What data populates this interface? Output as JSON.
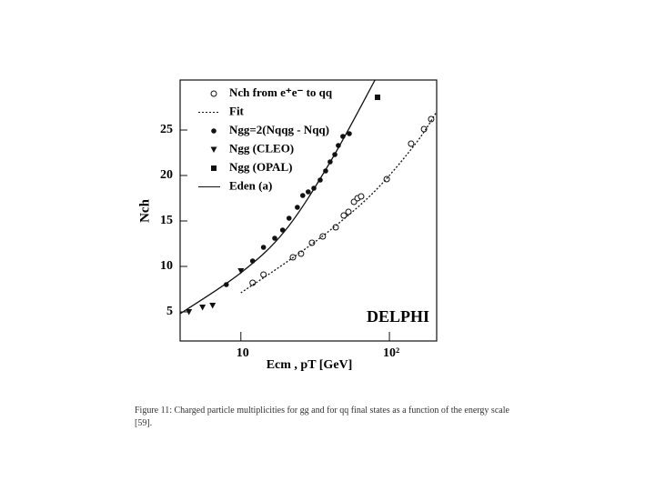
{
  "chart_data": {
    "type": "line",
    "y_label": "Nch",
    "x_label": "Ecm , pT [GeV]",
    "annotation": "DELPHI",
    "caption": "Figure 11: Charged particle multiplicities for gg and for qq final states as a function of the energy scale [59].",
    "log_x": true,
    "xlim": [
      3.9,
      208
    ],
    "ylim": [
      1.8,
      30.5
    ],
    "xticks": [
      10,
      {
        "value": 100,
        "label": "10²"
      }
    ],
    "yticks": [
      5,
      10,
      15,
      20,
      25
    ],
    "legend": "top-left",
    "series": [
      {
        "name": "Nch from e⁺e⁻ to qq",
        "marker": "open-circle",
        "color": "#111",
        "x": [
          12.0,
          14.2,
          22.4,
          25.4,
          30.1,
          35.6,
          43.5,
          49.3,
          53.0,
          57.7,
          61.0,
          64.5,
          95.9,
          140,
          171,
          191
        ],
        "values": [
          8.2,
          9.1,
          11.0,
          11.4,
          12.6,
          13.3,
          14.3,
          15.6,
          16.0,
          17.1,
          17.5,
          17.7,
          19.6,
          23.5,
          25.1,
          26.2
        ]
      },
      {
        "name": "Fit",
        "marker": "dotted-line",
        "color": "#111",
        "x": [
          10,
          20,
          40,
          80,
          150,
          208
        ],
        "values": [
          7.1,
          10.4,
          14.0,
          18.3,
          23.5,
          27.0
        ]
      },
      {
        "name": "Ngg=2(Nqqg - Nqq)",
        "marker": "filled-circle",
        "color": "#111",
        "x": [
          7.98,
          12.0,
          14.2,
          16.9,
          19.1,
          21.1,
          24.0,
          26.1,
          28.4,
          31.0,
          34.2,
          37.2,
          39.9,
          42.9,
          45.3,
          48.6,
          53.7
        ],
        "values": [
          8.0,
          10.6,
          12.1,
          13.1,
          14.0,
          15.3,
          16.5,
          17.8,
          18.2,
          18.6,
          19.5,
          20.5,
          21.5,
          22.3,
          23.3,
          24.3,
          24.6
        ]
      },
      {
        "name": "Ngg (CLEO)",
        "marker": "triangle-down",
        "color": "#111",
        "x": [
          4.47,
          5.52,
          6.45,
          10
        ],
        "values": [
          5.0,
          5.5,
          5.7,
          9.5
        ]
      },
      {
        "name": "Ngg (OPAL)",
        "marker": "filled-square",
        "color": "#111",
        "x": [
          83.2
        ],
        "values": [
          28.6
        ]
      },
      {
        "name": "Eden (a)",
        "marker": "solid-line",
        "color": "#111",
        "x": [
          3.9,
          10,
          20,
          40,
          80
        ],
        "values": [
          4.8,
          9.3,
          14.0,
          21.5,
          30.5
        ]
      }
    ]
  }
}
